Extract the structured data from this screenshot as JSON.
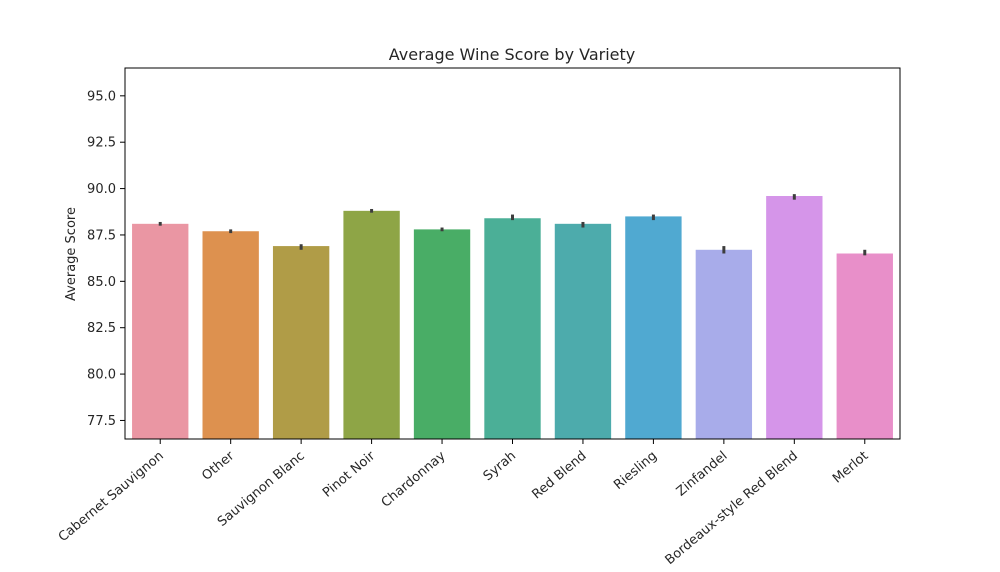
{
  "chart_data": {
    "type": "bar",
    "title": "Average Wine Score by Variety",
    "xlabel": "",
    "ylabel": "Average Score",
    "ylim": [
      76.5,
      96.5
    ],
    "yticks": [
      "77.5",
      "80.0",
      "82.5",
      "85.0",
      "87.5",
      "90.0",
      "92.5",
      "95.0"
    ],
    "grid": false,
    "categories": [
      "Cabernet Sauvignon",
      "Other",
      "Sauvignon Blanc",
      "Pinot Noir",
      "Chardonnay",
      "Syrah",
      "Red Blend",
      "Riesling",
      "Zinfandel",
      "Bordeaux-style Red Blend",
      "Merlot"
    ],
    "values": [
      88.1,
      87.7,
      86.9,
      88.8,
      87.8,
      88.4,
      88.1,
      88.5,
      86.7,
      89.6,
      86.5
    ],
    "error_low": [
      88.0,
      87.6,
      86.7,
      88.7,
      87.7,
      88.3,
      87.9,
      88.3,
      86.5,
      89.4,
      86.4
    ],
    "error_high": [
      88.2,
      87.8,
      87.0,
      88.9,
      87.9,
      88.6,
      88.2,
      88.6,
      86.9,
      89.7,
      86.7
    ],
    "colors": [
      "#ea96a3",
      "#dd914f",
      "#b09c47",
      "#8ea546",
      "#49ad66",
      "#4baf97",
      "#4dabac",
      "#50a9d1",
      "#a8acea",
      "#d595e9",
      "#e88fc9"
    ]
  }
}
